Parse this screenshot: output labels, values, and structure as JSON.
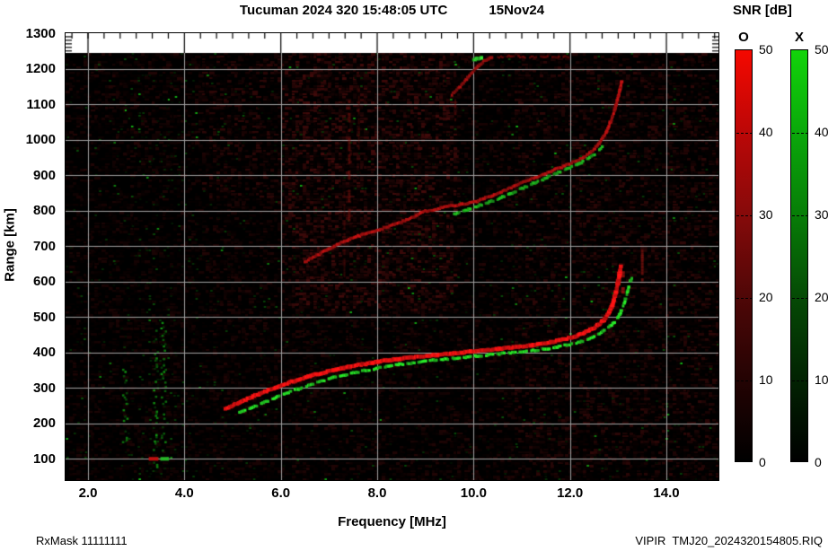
{
  "title": {
    "main": "Tucuman 2024 320 15:48:05 UTC",
    "date": "15Nov24"
  },
  "footer": {
    "rxmask": "RxMask 11111111",
    "filename": "VIPIR  TMJ20_2024320154805.RIQ"
  },
  "chart_data": {
    "type": "heatmap",
    "subtype": "ionogram",
    "title": "Tucuman 2024 320 15:48:05 UTC 15Nov24",
    "xlabel": "Frequency [MHz]",
    "ylabel": "Range [km]",
    "xlim": [
      1.534,
      15.08
    ],
    "ylim": [
      40,
      1300
    ],
    "data_top_range_km": 1244,
    "grid": "on",
    "grid_color": "#a2a2a2",
    "background_color": "#000000",
    "xticks": {
      "values": [
        2,
        4,
        6,
        8,
        10,
        12,
        14
      ],
      "labels": [
        "2.0",
        "4.0",
        "6.0",
        "8.0",
        "10.0",
        "12.0",
        "14.0"
      ]
    },
    "yticks": {
      "values": [
        100,
        200,
        300,
        400,
        500,
        600,
        700,
        800,
        900,
        1000,
        1100,
        1200,
        1300
      ],
      "labels": [
        "100",
        "200",
        "300",
        "400",
        "500",
        "600",
        "700",
        "800",
        "900",
        "1000",
        "1100",
        "1200",
        "1300"
      ]
    },
    "colorbar_title": "SNR [dB]",
    "colorbars": [
      {
        "mode": "O",
        "min": 0,
        "max": 50,
        "tick_values": [
          0,
          10,
          20,
          30,
          40,
          50
        ],
        "tick_labels": [
          "0",
          "10",
          "20",
          "30",
          "40",
          "50"
        ],
        "stops": [
          "#f50800",
          "#bb0707",
          "#860a0a",
          "#4f0707",
          "#240303",
          "#000000"
        ]
      },
      {
        "mode": "X",
        "min": 0,
        "max": 50,
        "tick_values": [
          0,
          10,
          20,
          30,
          40,
          50
        ],
        "tick_labels": [
          "0",
          "10",
          "20",
          "30",
          "40",
          "50"
        ],
        "stops": [
          "#12d40a",
          "#0aa80a",
          "#077d07",
          "#054a05",
          "#022302",
          "#000000"
        ]
      }
    ],
    "traces": [
      {
        "name": "F-layer first hop O-mode",
        "color": "#e41212",
        "width": 4,
        "bright": true,
        "dashed": false,
        "points": [
          [
            4.85,
            242
          ],
          [
            5.2,
            262
          ],
          [
            5.5,
            280
          ],
          [
            5.8,
            296
          ],
          [
            6.1,
            311
          ],
          [
            6.4,
            325
          ],
          [
            6.7,
            337
          ],
          [
            7.0,
            347
          ],
          [
            7.3,
            356
          ],
          [
            7.6,
            364
          ],
          [
            7.9,
            371
          ],
          [
            8.2,
            377
          ],
          [
            8.5,
            382
          ],
          [
            8.8,
            387
          ],
          [
            9.1,
            391
          ],
          [
            9.4,
            395
          ],
          [
            9.7,
            399
          ],
          [
            10.0,
            403
          ],
          [
            10.3,
            407
          ],
          [
            10.6,
            411
          ],
          [
            10.9,
            415
          ],
          [
            11.2,
            420
          ],
          [
            11.5,
            426
          ],
          [
            11.8,
            434
          ],
          [
            12.0,
            441
          ],
          [
            12.2,
            450
          ],
          [
            12.4,
            461
          ],
          [
            12.55,
            474
          ],
          [
            12.7,
            490
          ],
          [
            12.8,
            510
          ],
          [
            12.88,
            535
          ],
          [
            12.94,
            562
          ],
          [
            12.99,
            592
          ],
          [
            13.03,
            622
          ],
          [
            13.06,
            648
          ]
        ]
      },
      {
        "name": "F-layer first hop X-mode",
        "color": "#23c623",
        "width": 3,
        "bright": true,
        "dashed": true,
        "points": [
          [
            5.15,
            230
          ],
          [
            5.5,
            250
          ],
          [
            5.8,
            268
          ],
          [
            6.1,
            284
          ],
          [
            6.4,
            299
          ],
          [
            6.7,
            313
          ],
          [
            7.0,
            326
          ],
          [
            7.3,
            336
          ],
          [
            7.6,
            345
          ],
          [
            7.9,
            353
          ],
          [
            8.2,
            361
          ],
          [
            8.5,
            367
          ],
          [
            8.8,
            372
          ],
          [
            9.1,
            377
          ],
          [
            9.4,
            381
          ],
          [
            9.7,
            385
          ],
          [
            10.0,
            389
          ],
          [
            10.3,
            393
          ],
          [
            10.6,
            397
          ],
          [
            10.9,
            401
          ],
          [
            11.2,
            405
          ],
          [
            11.5,
            410
          ],
          [
            11.8,
            417
          ],
          [
            12.1,
            425
          ],
          [
            12.3,
            433
          ],
          [
            12.5,
            444
          ],
          [
            12.65,
            455
          ],
          [
            12.8,
            470
          ],
          [
            12.95,
            490
          ],
          [
            13.05,
            512
          ],
          [
            13.13,
            540
          ],
          [
            13.19,
            570
          ],
          [
            13.25,
            600
          ],
          [
            13.3,
            615
          ]
        ]
      },
      {
        "name": "F-layer second hop O-mode",
        "color": "#a81010",
        "width": 3,
        "bright": false,
        "dashed": false,
        "points": [
          [
            6.5,
            655
          ],
          [
            6.9,
            685
          ],
          [
            7.25,
            710
          ],
          [
            7.6,
            728
          ],
          [
            8.0,
            744
          ],
          [
            8.5,
            768
          ],
          [
            9.0,
            798
          ],
          [
            9.5,
            812
          ],
          [
            10.0,
            823
          ],
          [
            10.5,
            848
          ],
          [
            11.0,
            878
          ],
          [
            11.5,
            905
          ],
          [
            12.0,
            932
          ],
          [
            12.25,
            948
          ],
          [
            12.45,
            965
          ],
          [
            12.6,
            990
          ],
          [
            12.75,
            1020
          ],
          [
            12.85,
            1052
          ],
          [
            12.93,
            1085
          ],
          [
            13.0,
            1120
          ],
          [
            13.05,
            1148
          ],
          [
            13.08,
            1168
          ]
        ]
      },
      {
        "name": "F-layer second hop X-mode",
        "color": "#1da81d",
        "width": 3,
        "bright": false,
        "dashed": true,
        "points": [
          [
            9.6,
            790
          ],
          [
            9.9,
            803
          ],
          [
            10.2,
            818
          ],
          [
            10.5,
            833
          ],
          [
            10.8,
            850
          ],
          [
            11.1,
            868
          ],
          [
            11.4,
            886
          ],
          [
            11.7,
            904
          ],
          [
            12.0,
            921
          ],
          [
            12.3,
            940
          ],
          [
            12.55,
            962
          ],
          [
            12.7,
            985
          ]
        ]
      },
      {
        "name": "upper faint trace O-mode",
        "color": "#8e0e0e",
        "width": 3,
        "bright": false,
        "dashed": false,
        "points": [
          [
            9.55,
            1125
          ],
          [
            9.75,
            1155
          ],
          [
            9.95,
            1185
          ],
          [
            10.1,
            1208
          ],
          [
            10.25,
            1224
          ],
          [
            10.4,
            1235
          ]
        ]
      },
      {
        "name": "upper faint trace tail",
        "color": "#5a0808",
        "width": 2,
        "bright": false,
        "dashed": true,
        "points": [
          [
            10.5,
            1232
          ],
          [
            10.8,
            1236
          ],
          [
            11.1,
            1231
          ],
          [
            11.4,
            1235
          ],
          [
            11.7,
            1232
          ],
          [
            12.0,
            1234
          ]
        ]
      },
      {
        "name": "upper faint trace X-mode blob",
        "color": "#2ec22e",
        "width": 4,
        "bright": true,
        "dashed": false,
        "points": [
          [
            10.02,
            1226
          ],
          [
            10.2,
            1232
          ]
        ]
      }
    ],
    "vertical_streaks": [
      {
        "f": 7.42,
        "r": [
          760,
          1120
        ],
        "color": "rgba(150,20,16,0.45)",
        "w": 3,
        "dashed": true
      },
      {
        "f": 7.32,
        "r": [
          620,
          860
        ],
        "color": "rgba(110,14,12,0.35)",
        "w": 2,
        "dashed": true
      },
      {
        "f": 7.62,
        "r": [
          980,
          1160
        ],
        "color": "rgba(120,16,12,0.35)",
        "w": 2,
        "dashed": true
      },
      {
        "f": 9.62,
        "r": [
          1060,
          1140
        ],
        "color": "rgba(130,18,14,0.40)",
        "w": 2,
        "dashed": true
      },
      {
        "f": 13.5,
        "r": [
          600,
          700
        ],
        "color": "rgba(170,24,18,0.55)",
        "w": 3,
        "dashed": true
      },
      {
        "f": 13.1,
        "r": [
          575,
          655
        ],
        "color": "rgba(190,26,20,0.65)",
        "w": 4,
        "dashed": true
      }
    ],
    "echo_blobs": [
      {
        "f": [
          3.26,
          3.46
        ],
        "r": 100,
        "color": "#c01010"
      },
      {
        "f": [
          3.5,
          3.68
        ],
        "r": 100,
        "color": "#28b828"
      }
    ],
    "green_noise_bands": [
      {
        "f": 3.38,
        "r": [
          80,
          470
        ]
      },
      {
        "f": 3.55,
        "r": [
          120,
          500
        ]
      },
      {
        "f": 2.75,
        "r": [
          150,
          360
        ]
      }
    ],
    "noise": {
      "seed": 42,
      "red_density": 0.5,
      "green_density": 0.03
    }
  }
}
